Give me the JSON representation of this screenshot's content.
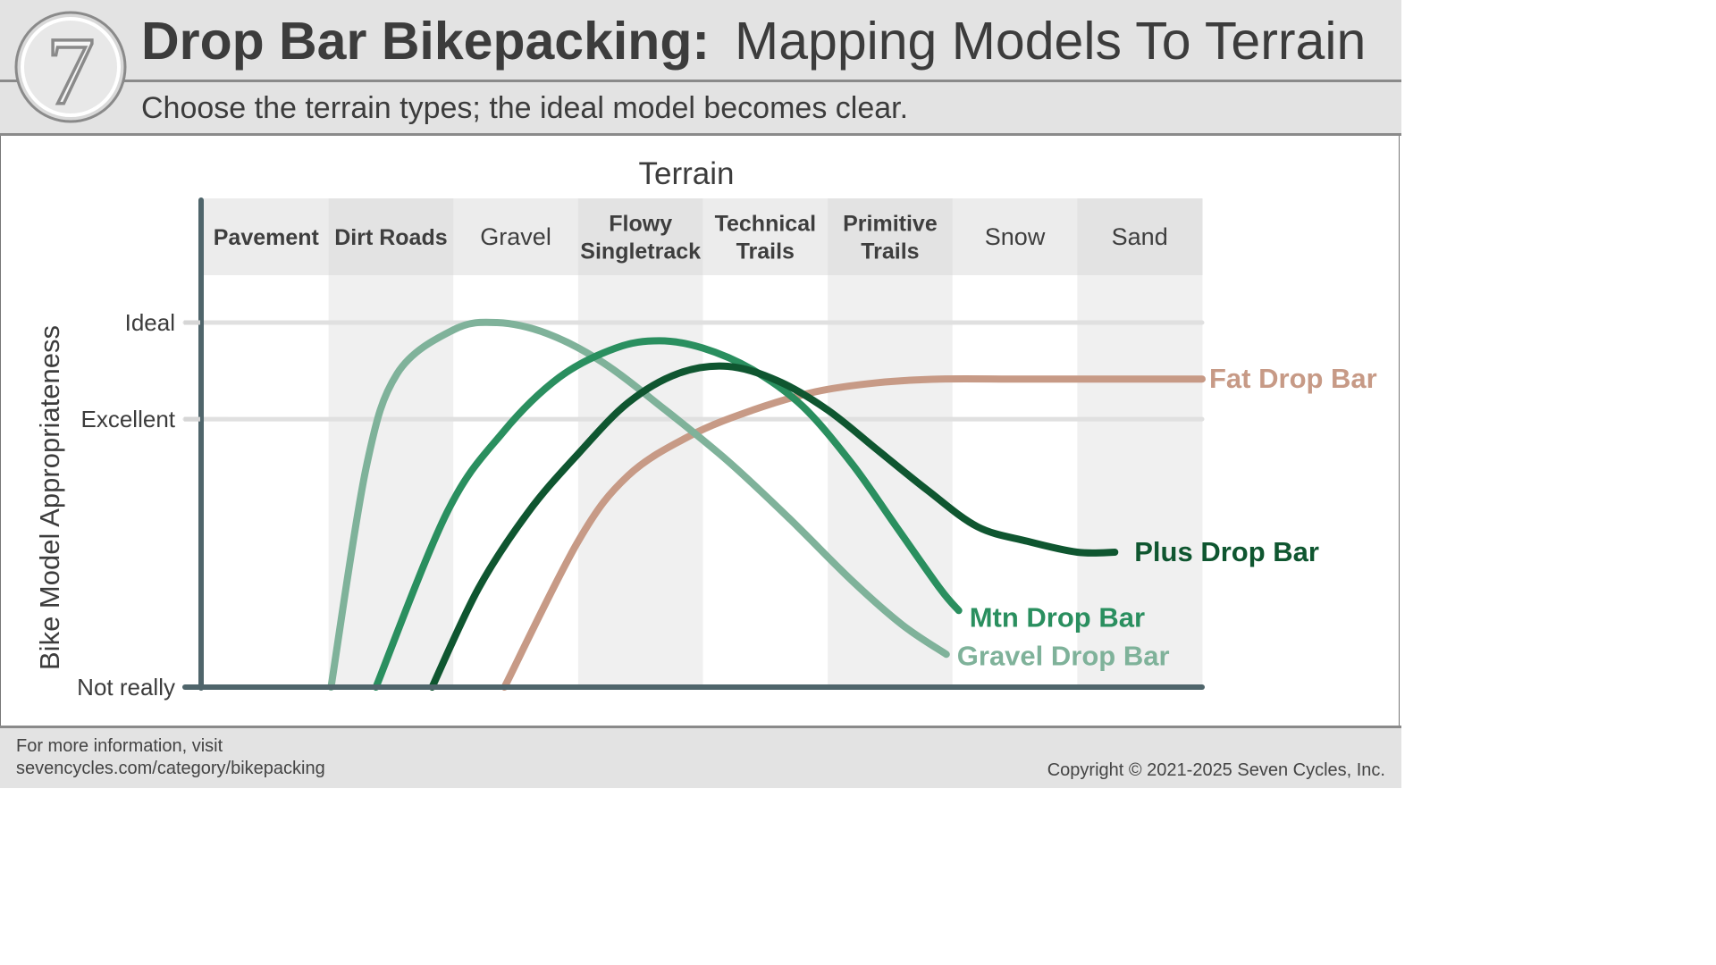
{
  "header": {
    "title_bold": "Drop Bar Bikepacking:",
    "title_rest": "Mapping Models To Terrain",
    "subtitle": "Choose the terrain types; the ideal model becomes clear.",
    "logo": {
      "icon": "seven-logo-icon",
      "glyph": "7"
    }
  },
  "footer": {
    "info_line1": "For more information, visit",
    "info_line2": "sevencycles.com/category/bikepacking",
    "copyright": "Copyright © 2021-2025 Seven Cycles, Inc."
  },
  "colors": {
    "header_bg": "#e3e3e3",
    "axis": "#4f656b",
    "band_light": "#f0f0f0",
    "header_cell": "#e6e6e6",
    "gravel": "#7fb29a",
    "mtn": "#2a8f5f",
    "plus": "#0f5630",
    "fat": "#c79a86"
  },
  "chart_data": {
    "type": "line",
    "xlabel": "Terrain",
    "ylabel": "Bike Model Appropriateness",
    "categories": [
      {
        "lines": [
          "Pavement"
        ],
        "bold": true
      },
      {
        "lines": [
          "Dirt Roads"
        ],
        "bold": true
      },
      {
        "lines": [
          "Gravel"
        ],
        "bold": false
      },
      {
        "lines": [
          "Flowy",
          "Singletrack"
        ],
        "bold": true
      },
      {
        "lines": [
          "Technical",
          "Trails"
        ],
        "bold": true
      },
      {
        "lines": [
          "Primitive",
          "Trails"
        ],
        "bold": true
      },
      {
        "lines": [
          "Snow"
        ],
        "bold": false
      },
      {
        "lines": [
          "Sand"
        ],
        "bold": false
      }
    ],
    "x_domain": [
      0,
      8
    ],
    "y_levels": [
      {
        "label": "Not really",
        "value": 0
      },
      {
        "label": "Excellent",
        "value": 0.735
      },
      {
        "label": "Ideal",
        "value": 1
      }
    ],
    "ylim": [
      0,
      1
    ],
    "grid": true,
    "series": [
      {
        "name": "Gravel Drop Bar",
        "color": "#7fb29a",
        "points": [
          [
            1.02,
            0
          ],
          [
            1.3,
            0.6
          ],
          [
            1.55,
            0.86
          ],
          [
            2.0,
            0.98
          ],
          [
            2.35,
            1.0
          ],
          [
            2.75,
            0.97
          ],
          [
            3.2,
            0.89
          ],
          [
            3.7,
            0.76
          ],
          [
            4.2,
            0.62
          ],
          [
            4.7,
            0.46
          ],
          [
            5.2,
            0.29
          ],
          [
            5.6,
            0.17
          ],
          [
            5.95,
            0.09
          ]
        ]
      },
      {
        "name": "Mtn Drop Bar",
        "color": "#2a8f5f",
        "points": [
          [
            1.38,
            0
          ],
          [
            1.95,
            0.48
          ],
          [
            2.4,
            0.7
          ],
          [
            2.85,
            0.85
          ],
          [
            3.3,
            0.93
          ],
          [
            3.65,
            0.95
          ],
          [
            4.0,
            0.93
          ],
          [
            4.4,
            0.87
          ],
          [
            4.8,
            0.77
          ],
          [
            5.2,
            0.61
          ],
          [
            5.55,
            0.44
          ],
          [
            5.9,
            0.27
          ],
          [
            6.05,
            0.21
          ]
        ]
      },
      {
        "name": "Plus Drop Bar",
        "color": "#0f5630",
        "points": [
          [
            1.83,
            0
          ],
          [
            2.2,
            0.27
          ],
          [
            2.6,
            0.48
          ],
          [
            3.0,
            0.64
          ],
          [
            3.4,
            0.78
          ],
          [
            3.8,
            0.86
          ],
          [
            4.2,
            0.88
          ],
          [
            4.6,
            0.84
          ],
          [
            5.0,
            0.76
          ],
          [
            5.4,
            0.65
          ],
          [
            5.8,
            0.54
          ],
          [
            6.2,
            0.44
          ],
          [
            6.6,
            0.4
          ],
          [
            7.0,
            0.37
          ],
          [
            7.3,
            0.37
          ]
        ]
      },
      {
        "name": "Fat Drop Bar",
        "color": "#c79a86",
        "points": [
          [
            2.41,
            0
          ],
          [
            3.0,
            0.4
          ],
          [
            3.4,
            0.58
          ],
          [
            3.9,
            0.69
          ],
          [
            4.4,
            0.76
          ],
          [
            4.9,
            0.81
          ],
          [
            5.4,
            0.835
          ],
          [
            5.9,
            0.845
          ],
          [
            6.5,
            0.845
          ],
          [
            7.1,
            0.845
          ],
          [
            8.0,
            0.845
          ]
        ]
      }
    ]
  }
}
